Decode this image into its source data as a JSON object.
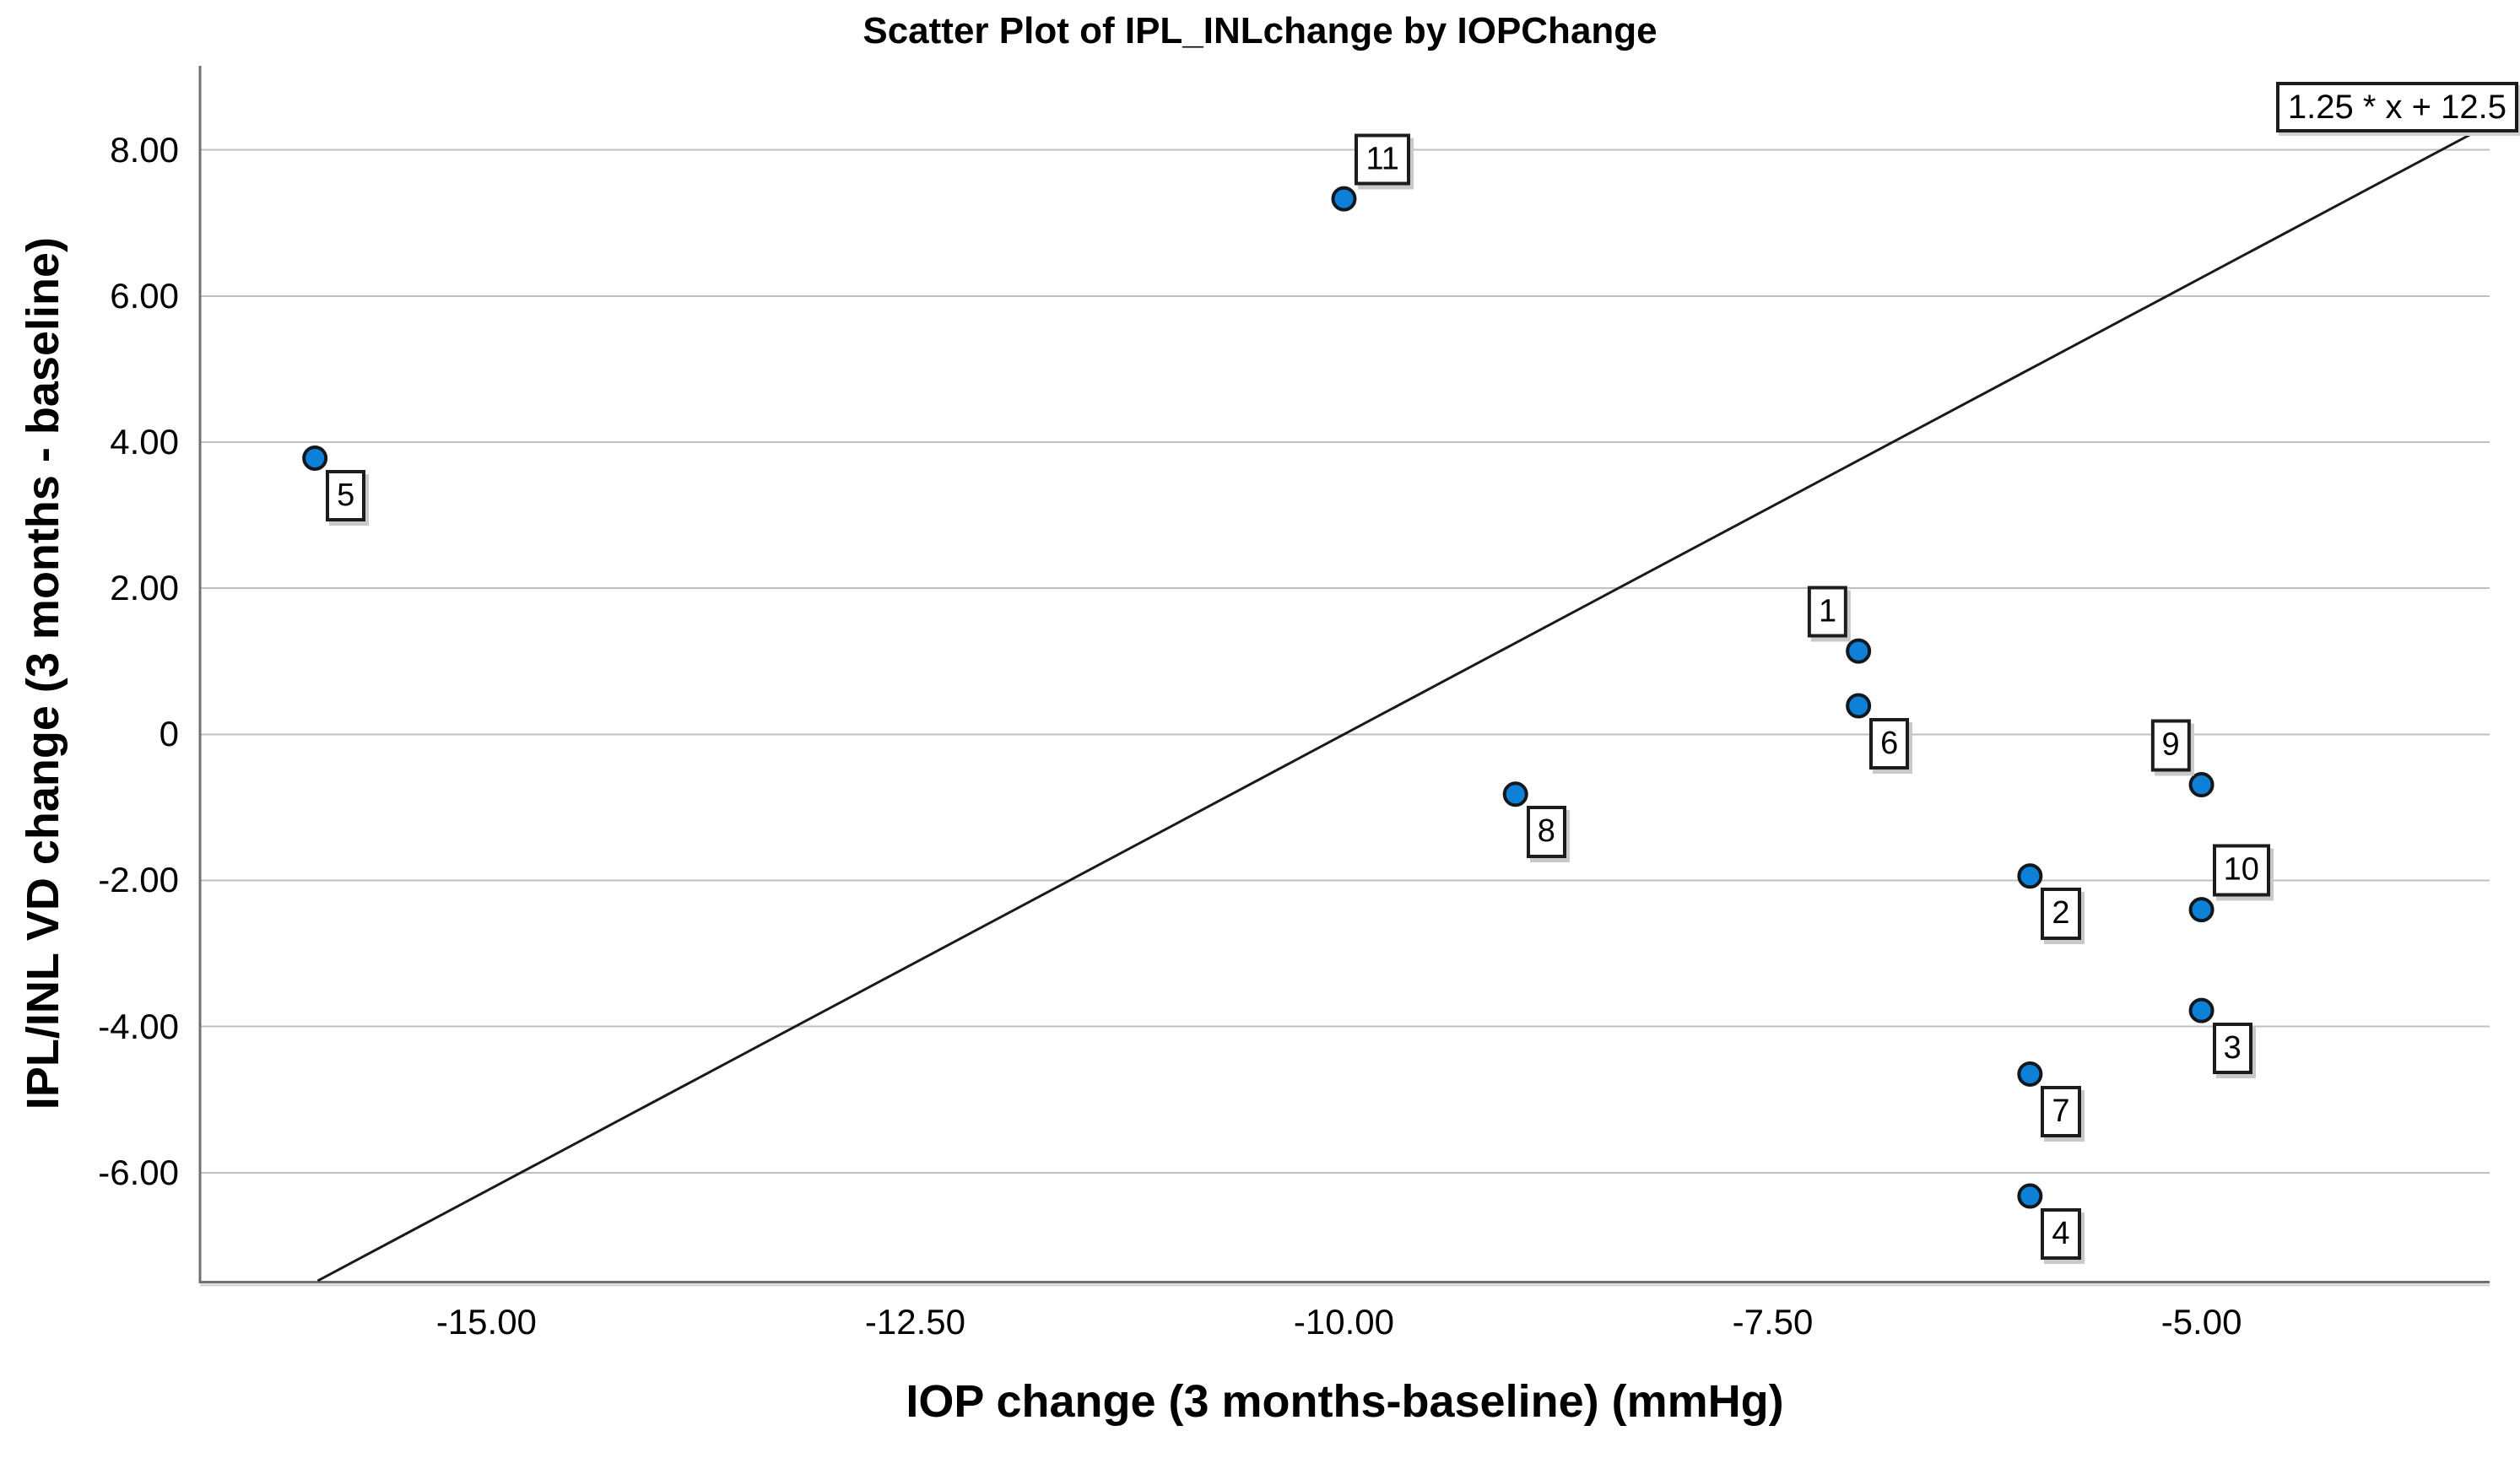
{
  "chart_data": {
    "type": "scatter",
    "title": "Scatter Plot of IPL_INLchange by IOPChange",
    "xlabel": "IOP change (3 months-baseline) (mmHg)",
    "ylabel": "IPL/INL VD change (3 months - baseline)",
    "xlim": [
      -16.67,
      -3.32
    ],
    "ylim": [
      -7.48,
      9.15
    ],
    "grid": "horizontal-gridlines-only",
    "legend": "none",
    "x_ticks": [
      {
        "v": -15,
        "label": "-15.00"
      },
      {
        "v": -12.5,
        "label": "-12.50"
      },
      {
        "v": -10,
        "label": "-10.00"
      },
      {
        "v": -7.5,
        "label": "-7.50"
      },
      {
        "v": -5,
        "label": "-5.00"
      }
    ],
    "y_ticks": [
      {
        "v": 8,
        "label": "8.00"
      },
      {
        "v": 6,
        "label": "6.00"
      },
      {
        "v": 4,
        "label": "4.00"
      },
      {
        "v": 2,
        "label": "2.00"
      },
      {
        "v": 0,
        "label": "0"
      },
      {
        "v": -2,
        "label": "-2.00"
      },
      {
        "v": -4,
        "label": "-4.00"
      },
      {
        "v": -6,
        "label": "-6.00"
      }
    ],
    "points": [
      {
        "id": "1",
        "x": -7,
        "y": 1.14,
        "label_placement": "above-left"
      },
      {
        "id": "2",
        "x": -6,
        "y": -1.94,
        "label_placement": "below-right"
      },
      {
        "id": "3",
        "x": -5,
        "y": -3.78,
        "label_placement": "below-right"
      },
      {
        "id": "4",
        "x": -6,
        "y": -6.32,
        "label_placement": "below-right"
      },
      {
        "id": "5",
        "x": -16,
        "y": 3.78,
        "label_placement": "below-right"
      },
      {
        "id": "6",
        "x": -7,
        "y": 0.39,
        "label_placement": "below-right"
      },
      {
        "id": "7",
        "x": -6,
        "y": -4.65,
        "label_placement": "below-right"
      },
      {
        "id": "8",
        "x": -9,
        "y": -0.82,
        "label_placement": "below-right"
      },
      {
        "id": "9",
        "x": -5,
        "y": -0.69,
        "label_placement": "above-left"
      },
      {
        "id": "10",
        "x": -5,
        "y": -2.4,
        "label_placement": "above-right"
      },
      {
        "id": "11",
        "x": -10,
        "y": 7.33,
        "label_placement": "above-right"
      }
    ],
    "fit_line": {
      "label": "1.25 * x + 12.5",
      "slope": 1.25,
      "intercept": 12.5
    },
    "colors": {
      "marker_fill": "#0d80d8",
      "marker_edge": "#14181c",
      "gridline": "#bfbfbf",
      "axis": "#717171",
      "axis_shadow": "#d6d6d6",
      "fit_line": "#1a1a1a"
    }
  }
}
